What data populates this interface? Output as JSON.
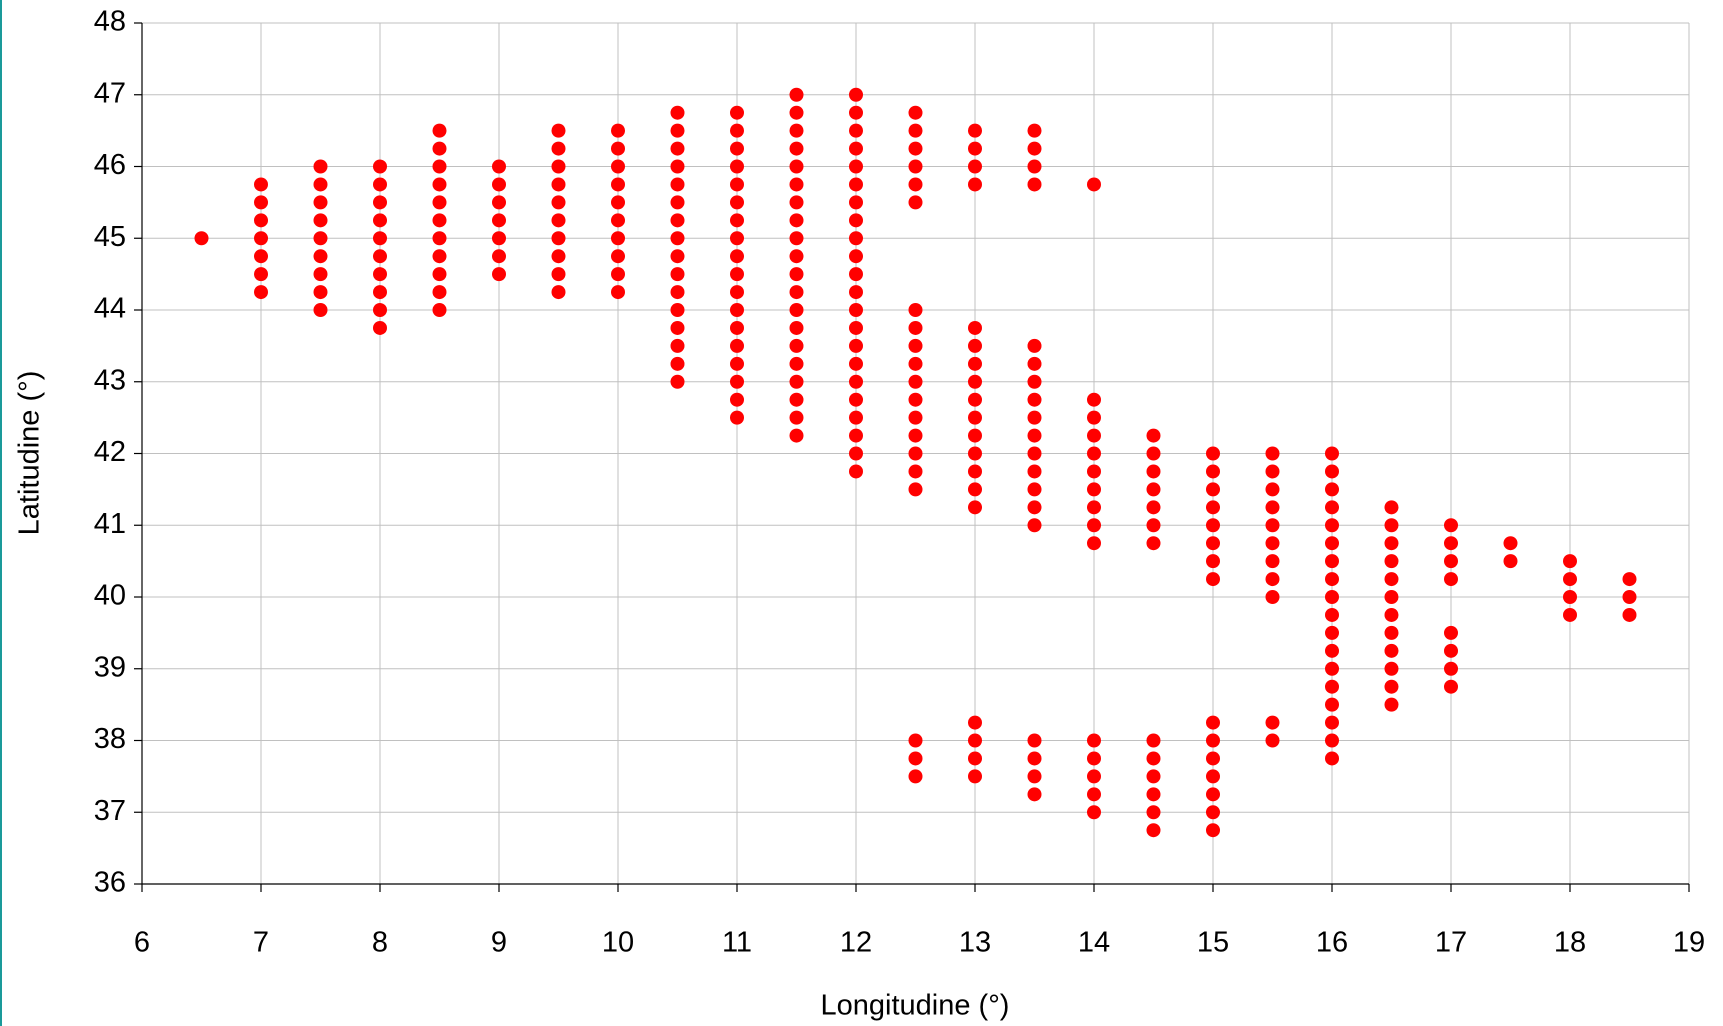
{
  "chart_data": {
    "type": "scatter",
    "x_label": "Longitudine (°)",
    "y_label": "Latitudine (°)",
    "color": "#ff0000",
    "grid": true,
    "xlim": [
      6,
      19
    ],
    "xticks": [
      6,
      7,
      8,
      9,
      10,
      11,
      12,
      13,
      14,
      15,
      16,
      17,
      18,
      19
    ],
    "ylim": [
      36,
      48
    ],
    "yticks": [
      36,
      37,
      38,
      39,
      40,
      41,
      42,
      43,
      44,
      45,
      46,
      47,
      48
    ],
    "x": [
      6.5,
      7,
      7,
      7,
      7,
      7,
      7,
      7,
      7.5,
      7.5,
      7.5,
      7.5,
      7.5,
      7.5,
      7.5,
      7.5,
      7.5,
      8,
      8,
      8,
      8,
      8,
      8,
      8,
      8,
      8,
      8,
      8.5,
      8.5,
      8.5,
      8.5,
      8.5,
      8.5,
      8.5,
      8.5,
      8.5,
      8.5,
      8.5,
      9,
      9,
      9,
      9,
      9,
      9,
      9,
      9.5,
      9.5,
      9.5,
      9.5,
      9.5,
      9.5,
      9.5,
      9.5,
      9.5,
      9.5,
      10,
      10,
      10,
      10,
      10,
      10,
      10,
      10,
      10,
      10,
      10.5,
      10.5,
      10.5,
      10.5,
      10.5,
      10.5,
      10.5,
      10.5,
      10.5,
      10.5,
      10.5,
      10.5,
      10.5,
      10.5,
      10.5,
      10.5,
      11,
      11,
      11,
      11,
      11,
      11,
      11,
      11,
      11,
      11,
      11,
      11,
      11,
      11,
      11,
      11,
      11,
      11,
      11.5,
      11.5,
      11.5,
      11.5,
      11.5,
      11.5,
      11.5,
      11.5,
      11.5,
      11.5,
      11.5,
      11.5,
      11.5,
      11.5,
      11.5,
      11.5,
      11.5,
      11.5,
      11.5,
      11.5,
      12,
      12,
      12,
      12,
      12,
      12,
      12,
      12,
      12,
      12,
      12,
      12,
      12,
      12,
      12,
      12,
      12,
      12,
      12,
      12,
      12,
      12,
      12.5,
      12.5,
      12.5,
      12.5,
      12.5,
      12.5,
      12.5,
      12.5,
      12.5,
      12.5,
      12.5,
      12.5,
      12.5,
      12.5,
      12.5,
      12.5,
      12.5,
      12.5,
      12.5,
      12.5,
      13,
      13,
      13,
      13,
      13,
      13,
      13,
      13,
      13,
      13,
      13,
      13,
      13,
      13,
      13,
      13,
      13,
      13,
      13,
      13.5,
      13.5,
      13.5,
      13.5,
      13.5,
      13.5,
      13.5,
      13.5,
      13.5,
      13.5,
      13.5,
      13.5,
      13.5,
      13.5,
      13.5,
      13.5,
      13.5,
      13.5,
      13.5,
      14,
      14,
      14,
      14,
      14,
      14,
      14,
      14,
      14,
      14,
      14,
      14,
      14,
      14,
      14,
      14.5,
      14.5,
      14.5,
      14.5,
      14.5,
      14.5,
      14.5,
      14.5,
      14.5,
      14.5,
      14.5,
      14.5,
      14.5,
      15,
      15,
      15,
      15,
      15,
      15,
      15,
      15,
      15,
      15,
      15,
      15,
      15,
      15,
      15,
      15.5,
      15.5,
      15.5,
      15.5,
      15.5,
      15.5,
      15.5,
      15.5,
      15.5,
      15.5,
      15.5,
      16,
      16,
      16,
      16,
      16,
      16,
      16,
      16,
      16,
      16,
      16,
      16,
      16,
      16,
      16,
      16,
      16,
      16,
      16.5,
      16.5,
      16.5,
      16.5,
      16.5,
      16.5,
      16.5,
      16.5,
      16.5,
      16.5,
      16.5,
      16.5,
      17,
      17,
      17,
      17,
      17,
      17,
      17,
      17,
      17.5,
      17.5,
      18,
      18,
      18,
      18,
      18.5,
      18.5,
      18.5
    ],
    "y": [
      45,
      44.25,
      44.5,
      44.75,
      45,
      45.25,
      45.5,
      45.75,
      44,
      44.25,
      44.5,
      44.75,
      45,
      45.25,
      45.5,
      45.75,
      46,
      43.75,
      44,
      44.25,
      44.5,
      44.75,
      45,
      45.25,
      45.5,
      45.75,
      46,
      44,
      44.25,
      44.5,
      44.75,
      45,
      45.25,
      45.5,
      45.75,
      46,
      46.25,
      46.5,
      44.5,
      44.75,
      45,
      45.25,
      45.5,
      45.75,
      46,
      44.25,
      44.5,
      44.75,
      45,
      45.25,
      45.5,
      45.75,
      46,
      46.25,
      46.5,
      44.25,
      44.5,
      44.75,
      45,
      45.25,
      45.5,
      45.75,
      46,
      46.25,
      46.5,
      43,
      43.25,
      43.5,
      43.75,
      44,
      44.25,
      44.5,
      44.75,
      45,
      45.25,
      45.5,
      45.75,
      46,
      46.25,
      46.5,
      46.75,
      42.5,
      42.75,
      43,
      43.25,
      43.5,
      43.75,
      44,
      44.25,
      44.5,
      44.75,
      45,
      45.25,
      45.5,
      45.75,
      46,
      46.25,
      46.5,
      46.75,
      42.25,
      42.5,
      42.75,
      43,
      43.25,
      43.5,
      43.75,
      44,
      44.25,
      44.5,
      44.75,
      45,
      45.25,
      45.5,
      45.75,
      46,
      46.25,
      46.5,
      46.75,
      47,
      41.75,
      42,
      42.25,
      42.5,
      42.75,
      43,
      43.25,
      43.5,
      43.75,
      44,
      44.25,
      44.5,
      44.75,
      45,
      45.25,
      45.5,
      45.75,
      46,
      46.25,
      46.5,
      46.75,
      47,
      37.5,
      37.75,
      38,
      41.5,
      41.75,
      42,
      42.25,
      42.5,
      42.75,
      43,
      43.25,
      43.5,
      43.75,
      44,
      45.5,
      45.75,
      46,
      46.25,
      46.5,
      46.75,
      37.5,
      37.75,
      38,
      38.25,
      41.25,
      41.5,
      41.75,
      42,
      42.25,
      42.5,
      42.75,
      43,
      43.25,
      43.5,
      43.75,
      45.75,
      46,
      46.25,
      46.5,
      37.25,
      37.5,
      37.75,
      38,
      41,
      41.25,
      41.5,
      41.75,
      42,
      42.25,
      42.5,
      42.75,
      43,
      43.25,
      43.5,
      45.75,
      46,
      46.25,
      46.5,
      37,
      37.25,
      37.5,
      37.75,
      38,
      40.75,
      41,
      41.25,
      41.5,
      41.75,
      42,
      42.25,
      42.5,
      42.75,
      45.75,
      36.75,
      37,
      37.25,
      37.5,
      37.75,
      38,
      40.75,
      41,
      41.25,
      41.5,
      41.75,
      42,
      42.25,
      36.75,
      37,
      37.25,
      37.5,
      37.75,
      38,
      38.25,
      40.25,
      40.5,
      40.75,
      41,
      41.25,
      41.5,
      41.75,
      42,
      38,
      38.25,
      40,
      40.25,
      40.5,
      40.75,
      41,
      41.25,
      41.5,
      41.75,
      42,
      37.75,
      38,
      38.25,
      38.5,
      38.75,
      39,
      39.25,
      39.5,
      39.75,
      40,
      40.25,
      40.5,
      40.75,
      41,
      41.25,
      41.5,
      41.75,
      42,
      38.5,
      38.75,
      39,
      39.25,
      39.5,
      39.75,
      40,
      40.25,
      40.5,
      40.75,
      41,
      41.25,
      38.75,
      39,
      39.25,
      39.5,
      40.25,
      40.5,
      40.75,
      41,
      40.5,
      40.75,
      39.75,
      40,
      40.25,
      40.5,
      39.75,
      40,
      40.25
    ]
  }
}
